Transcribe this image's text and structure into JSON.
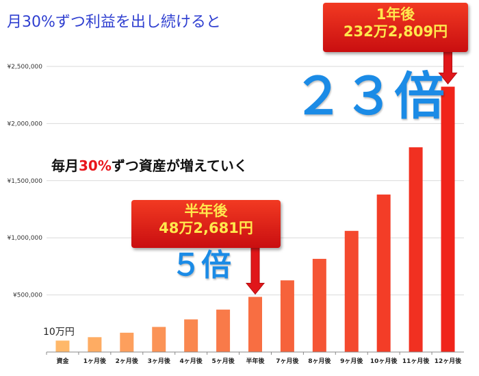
{
  "title": "月30%ずつ利益を出し続けると",
  "subtitle_parts": [
    "毎月",
    "30%",
    "ずつ資産が増えていく"
  ],
  "callout_half": {
    "line1": "半年後",
    "line2": "48万2,681円"
  },
  "callout_year": {
    "line1": "1年後",
    "line2": "232万2,809円"
  },
  "multiplier_half": "５倍",
  "multiplier_year": "２３倍",
  "base_label": "10万円",
  "colors": {
    "bar_start": "#ffb86a",
    "bar_end": "#f0241a",
    "title": "#2f3fd0",
    "multiplier": "#1b8be6",
    "callout": "#d8171a",
    "callout_text": "#ffe84d"
  },
  "chart_data": {
    "type": "bar",
    "categories": [
      "資金",
      "1ヶ月後",
      "2ヶ月後",
      "3ヶ月後",
      "4ヶ月後",
      "5ヶ月後",
      "半年後",
      "7ヶ月後",
      "8ヶ月後",
      "9ヶ月後",
      "10ヶ月後",
      "11ヶ月後",
      "12ヶ月後"
    ],
    "values": [
      100000,
      130000,
      169000,
      219700,
      285610,
      371293,
      482681,
      627485,
      815731,
      1060450,
      1378585,
      1792160,
      2322809
    ],
    "ylim": [
      0,
      2500000
    ],
    "yticks": [
      500000,
      1000000,
      1500000,
      2000000,
      2500000
    ],
    "ytick_labels": [
      "¥500,000",
      "¥1,000,000",
      "¥1,500,000",
      "¥2,000,000",
      "¥2,500,000"
    ],
    "grid": true,
    "legend": "none"
  }
}
